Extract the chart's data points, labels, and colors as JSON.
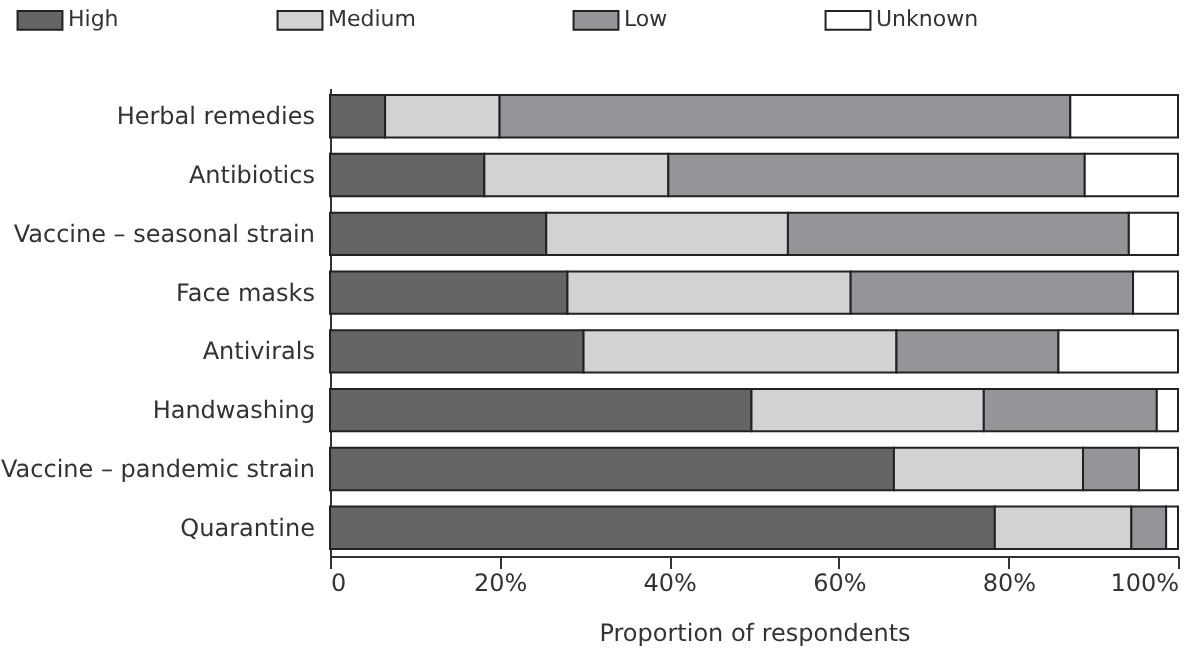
{
  "chart_data": {
    "type": "bar",
    "orientation": "horizontal",
    "stacked": true,
    "xlabel": "Proportion of respondents",
    "categories": [
      "Herbal remedies",
      "Antibiotics",
      "Vaccine – seasonal strain",
      "Face masks",
      "Antivirals",
      "Handwashing",
      "Vaccine – pandemic strain",
      "Quarantine"
    ],
    "series": [
      {
        "name": "High",
        "color": "#646567",
        "values": [
          6.5,
          18.2,
          25.5,
          28.0,
          29.9,
          49.7,
          66.5,
          78.4
        ]
      },
      {
        "name": "Medium",
        "color": "#d1d2d3",
        "values": [
          13.5,
          21.7,
          28.5,
          33.4,
          36.9,
          27.4,
          22.3,
          16.1
        ]
      },
      {
        "name": "Low",
        "color": "#949598",
        "values": [
          67.3,
          49.1,
          40.2,
          33.3,
          19.1,
          20.4,
          6.6,
          4.1
        ]
      },
      {
        "name": "Unknown",
        "color": "#ffffff",
        "values": [
          12.7,
          11.0,
          5.8,
          5.3,
          14.1,
          2.5,
          4.6,
          1.4
        ]
      }
    ],
    "xlim": [
      0,
      100
    ],
    "xticks": [
      {
        "value": 0,
        "label": "0"
      },
      {
        "value": 20,
        "label": "20%"
      },
      {
        "value": 40,
        "label": "40%"
      },
      {
        "value": 60,
        "label": "60%"
      },
      {
        "value": 80,
        "label": "80%"
      },
      {
        "value": 100,
        "label": "100%"
      }
    ],
    "legend": "top",
    "grid": false
  }
}
